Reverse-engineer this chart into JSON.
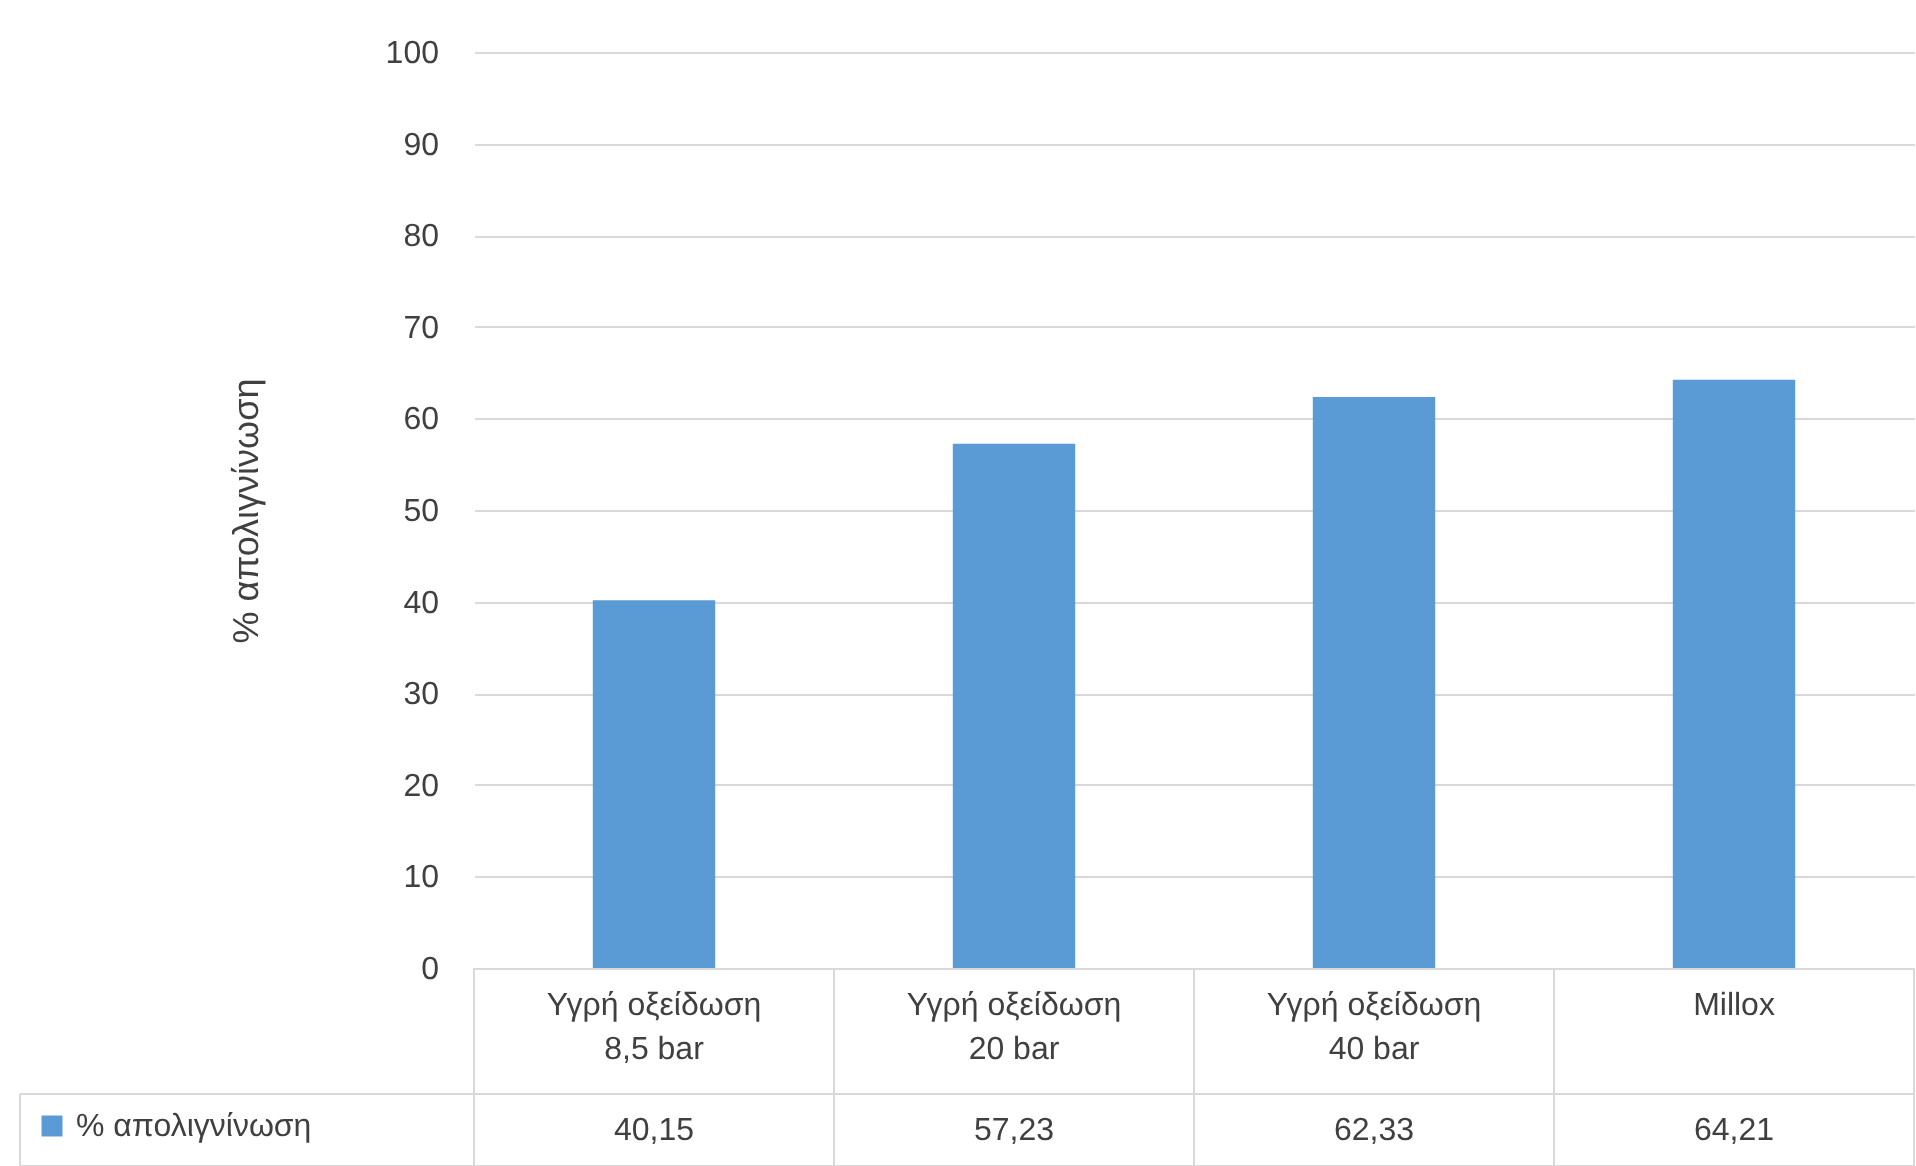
{
  "chart_data": {
    "type": "bar",
    "ylabel": "% απολιγνίνωση",
    "categories": [
      "Υγρή οξείδωση 8,5 bar",
      "Υγρή οξείδωση 20 bar",
      "Υγρή οξείδωση 40 bar",
      "Millox"
    ],
    "series": [
      {
        "name": "% απολιγνίνωση",
        "color": "#5b9bd5",
        "values": [
          40.15,
          57.23,
          62.33,
          64.21
        ],
        "value_labels": [
          "40,15",
          "57,23",
          "62,33",
          "64,21"
        ]
      }
    ],
    "ylim": [
      0,
      100
    ],
    "yticks": [
      0,
      10,
      20,
      30,
      40,
      50,
      60,
      70,
      80,
      90,
      100
    ],
    "grid": "y",
    "legend": "bottom"
  }
}
